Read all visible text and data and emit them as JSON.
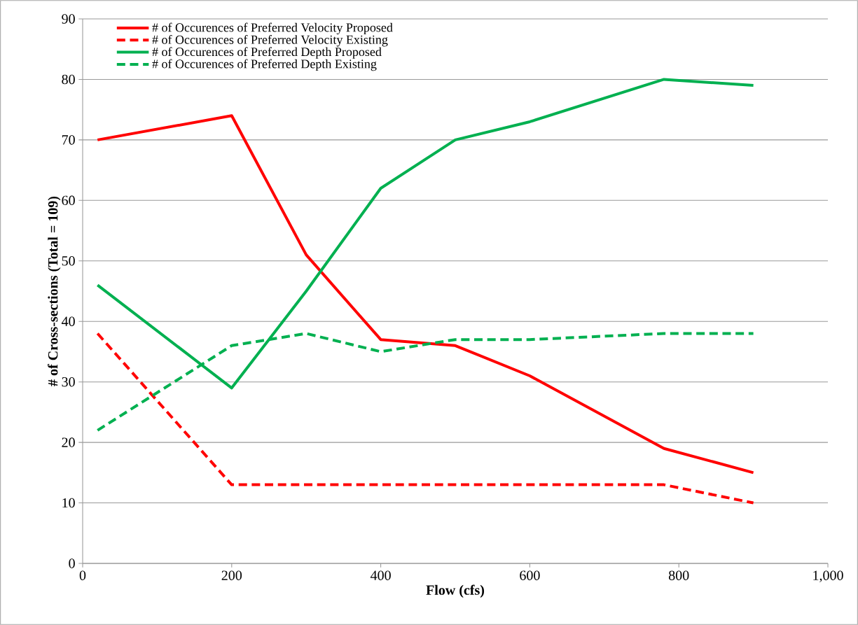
{
  "chart_data": {
    "type": "line",
    "xlabel": "Flow (cfs)",
    "ylabel": "# of Cross-sections (Total = 109)",
    "x": [
      20,
      200,
      300,
      400,
      500,
      600,
      780,
      900
    ],
    "series": [
      {
        "name": "# of Occurences of Preferred Velocity Proposed",
        "color": "#ff0000",
        "line_style": "solid",
        "values": [
          70,
          74,
          51,
          37,
          36,
          31,
          19,
          15
        ]
      },
      {
        "name": "# of Occurences of Preferred Velocity Existing",
        "color": "#ff0000",
        "line_style": "dashed",
        "values": [
          38,
          13,
          13,
          13,
          13,
          13,
          13,
          10
        ]
      },
      {
        "name": "# of Occurences of Preferred Depth Proposed",
        "color": "#00b050",
        "line_style": "solid",
        "values": [
          46,
          29,
          45,
          62,
          70,
          73,
          80,
          79
        ]
      },
      {
        "name": "# of Occurences of Preferred Depth Existing",
        "color": "#00b050",
        "line_style": "dashed",
        "values": [
          22,
          36,
          38,
          35,
          37,
          37,
          38,
          38
        ]
      }
    ],
    "xlim": [
      0,
      1000
    ],
    "ylim": [
      0,
      90
    ],
    "xticks": [
      0,
      200,
      400,
      600,
      800,
      {
        "value": 1000,
        "label": "1,000"
      }
    ],
    "yticks": [
      0,
      10,
      20,
      30,
      40,
      50,
      60,
      70,
      80,
      90
    ],
    "grid": "y",
    "legend": "top left",
    "marker": "none"
  }
}
